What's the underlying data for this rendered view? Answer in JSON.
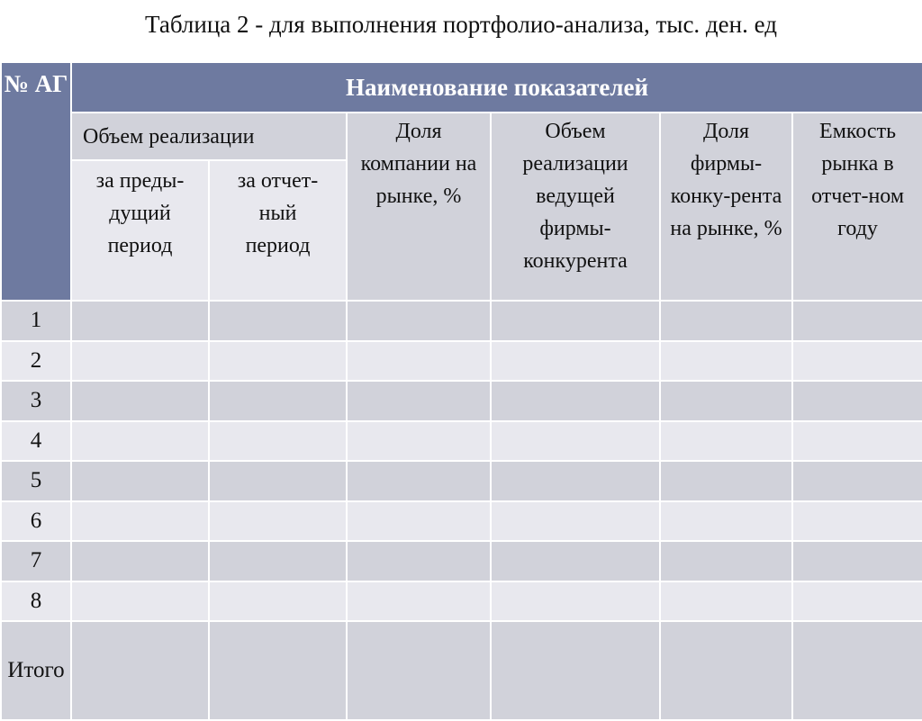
{
  "title": "Таблица 2 - для выполнения портфолио-анализа,  тыс. ден. ед",
  "header": {
    "ag": "№ АГ",
    "indicators": "Наименование показателей",
    "sales_volume": "Объем реализации",
    "prev_period": "за преды-дущий период",
    "curr_period": "за отчет-ный период",
    "company_share": "Доля компании на рынке, %",
    "leader_sales": "Объем реализации ведущей фирмы-конкурента",
    "competitor_share": "Доля фирмы-конку-рента на рынке, %",
    "market_capacity": "Емкость рынка в отчет-ном году"
  },
  "rows": [
    "1",
    "2",
    "3",
    "4",
    "5",
    "6",
    "7",
    "8",
    "Итого"
  ],
  "colors": {
    "header": "#6E7AA0",
    "dark": "#D1D2DA",
    "light": "#E8E8EE"
  }
}
